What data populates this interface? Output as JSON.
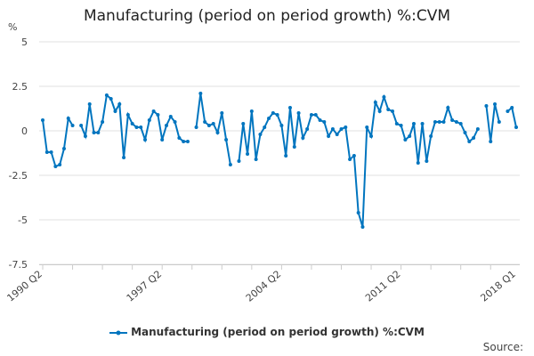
{
  "chart_data": {
    "type": "line",
    "title": "Manufacturing (period on period growth) %:CVM",
    "ylabel": "%",
    "ylim": [
      -7.5,
      5
    ],
    "yticks": [
      5,
      2.5,
      0,
      -2.5,
      -5,
      -7.5
    ],
    "ytick_labels": [
      "5",
      "2.5",
      "0",
      "-2.5",
      "-5",
      "-7.5"
    ],
    "start_quarter": "1990 Q2",
    "end_quarter": "2018 Q1",
    "xtick_labels": [
      "1990 Q2",
      "1997 Q2",
      "2004 Q2",
      "2011 Q2",
      "2018 Q1"
    ],
    "grid": true,
    "legend_position": "bottom",
    "series": [
      {
        "name": "Manufacturing (period on period growth) %:CVM",
        "color": "#0075bf",
        "values": [
          0.6,
          -1.2,
          -1.2,
          -2.0,
          -1.9,
          -1.0,
          0.7,
          0.3,
          null,
          0.3,
          -0.3,
          1.5,
          -0.1,
          -0.1,
          0.5,
          2.0,
          1.8,
          1.1,
          1.5,
          -1.5,
          0.9,
          0.4,
          0.2,
          0.2,
          -0.5,
          0.6,
          1.1,
          0.9,
          -0.5,
          0.3,
          0.8,
          0.5,
          -0.4,
          -0.6,
          -0.6,
          null,
          0.2,
          2.1,
          0.5,
          0.3,
          0.4,
          -0.1,
          1.0,
          -0.5,
          -1.9,
          null,
          -1.7,
          0.4,
          -1.3,
          1.1,
          -1.6,
          -0.2,
          0.2,
          0.7,
          1.0,
          0.9,
          0.3,
          -1.4,
          1.3,
          -0.9,
          1.0,
          -0.4,
          0.1,
          0.9,
          0.9,
          0.6,
          0.5,
          -0.3,
          0.1,
          -0.2,
          0.1,
          0.2,
          -1.6,
          -1.4,
          -4.6,
          -5.4,
          0.2,
          -0.3,
          1.6,
          1.1,
          1.9,
          1.2,
          1.1,
          0.4,
          0.3,
          -0.5,
          -0.3,
          0.4,
          -1.8,
          0.4,
          -1.7,
          -0.3,
          0.5,
          0.5,
          0.5,
          1.3,
          0.6,
          0.5,
          0.4,
          -0.1,
          -0.6,
          -0.4,
          0.1,
          null,
          1.4,
          -0.6,
          1.5,
          0.5,
          null,
          1.1,
          1.3,
          0.2
        ]
      }
    ]
  },
  "source_label": "Source:"
}
